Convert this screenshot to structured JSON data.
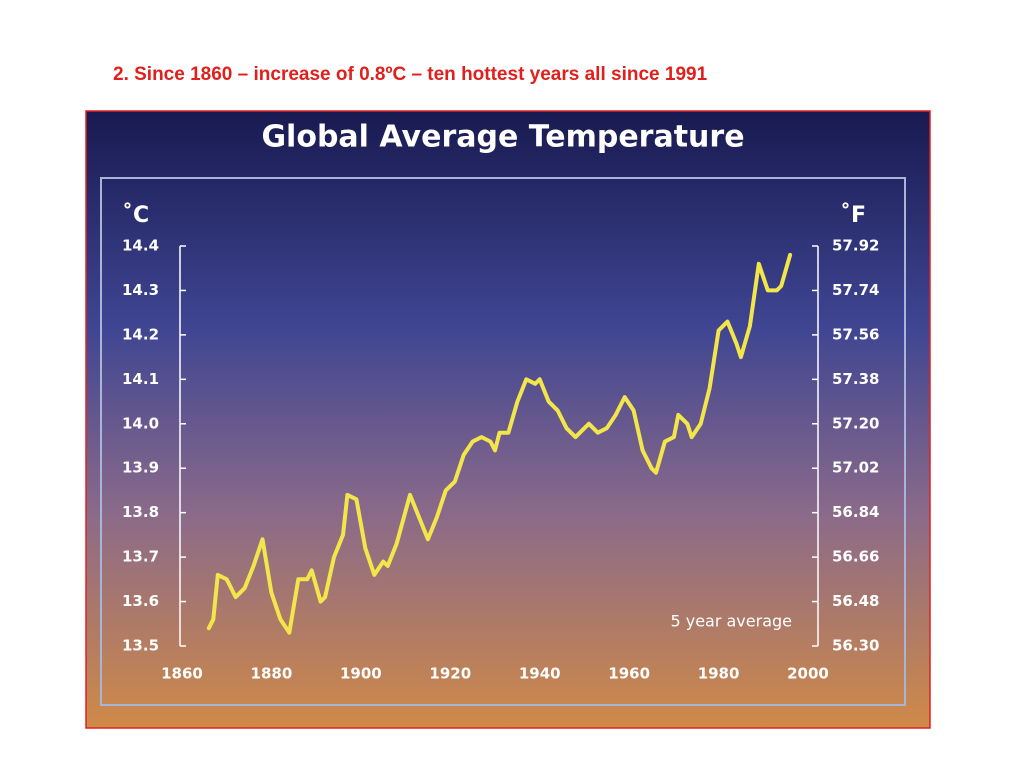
{
  "heading": "2. Since 1860 – increase of 0.8ºC – ten hottest years all since 1991",
  "chart_data": {
    "type": "line",
    "title": "Global Average Temperature",
    "y_label": "˚C",
    "y2_label": "˚F",
    "annotation": "5 year average",
    "color": "#f2e64a",
    "x": [
      1866,
      1867,
      1868,
      1870,
      1872,
      1874,
      1876,
      1878,
      1880,
      1882,
      1884,
      1886,
      1888,
      1889,
      1891,
      1892,
      1894,
      1896,
      1897,
      1899,
      1901,
      1903,
      1905,
      1906,
      1908,
      1911,
      1913,
      1915,
      1917,
      1919,
      1921,
      1923,
      1925,
      1927,
      1929,
      1930,
      1931,
      1933,
      1935,
      1937,
      1939,
      1940,
      1942,
      1944,
      1946,
      1948,
      1950,
      1951,
      1953,
      1955,
      1957,
      1959,
      1961,
      1963,
      1965,
      1966,
      1968,
      1970,
      1971,
      1973,
      1974,
      1976,
      1978,
      1980,
      1982,
      1984,
      1985,
      1987,
      1989,
      1991,
      1993,
      1994,
      1996
    ],
    "values": [
      13.54,
      13.56,
      13.66,
      13.65,
      13.61,
      13.63,
      13.68,
      13.74,
      13.62,
      13.56,
      13.53,
      13.65,
      13.65,
      13.67,
      13.6,
      13.61,
      13.7,
      13.75,
      13.84,
      13.83,
      13.72,
      13.66,
      13.69,
      13.68,
      13.73,
      13.84,
      13.79,
      13.74,
      13.79,
      13.85,
      13.87,
      13.93,
      13.96,
      13.97,
      13.96,
      13.94,
      13.98,
      13.98,
      14.05,
      14.1,
      14.09,
      14.1,
      14.05,
      14.03,
      13.99,
      13.97,
      13.99,
      14,
      13.98,
      13.99,
      14.02,
      14.06,
      14.03,
      13.94,
      13.9,
      13.89,
      13.96,
      13.97,
      14.02,
      14,
      13.97,
      14,
      14.08,
      14.21,
      14.23,
      14.18,
      14.15,
      14.22,
      14.36,
      14.3,
      14.3,
      14.31,
      14.38
    ],
    "xlim": [
      1860,
      2000
    ],
    "xticks": [
      1860,
      1880,
      1900,
      1920,
      1940,
      1960,
      1980,
      2000
    ],
    "ylim": [
      13.5,
      14.4
    ],
    "yticks": [
      13.5,
      13.6,
      13.7,
      13.8,
      13.9,
      {
        "value": 14,
        "label": "14.0"
      },
      14.1,
      14.2,
      14.3,
      14.4
    ],
    "y2lim": [
      56.3,
      57.92
    ],
    "y2ticks": [
      {
        "value": 56.3,
        "label": "56.30"
      },
      56.48,
      56.66,
      56.84,
      57.02,
      {
        "value": 57.2,
        "label": "57.20"
      },
      57.38,
      57.56,
      57.74,
      57.92
    ]
  }
}
